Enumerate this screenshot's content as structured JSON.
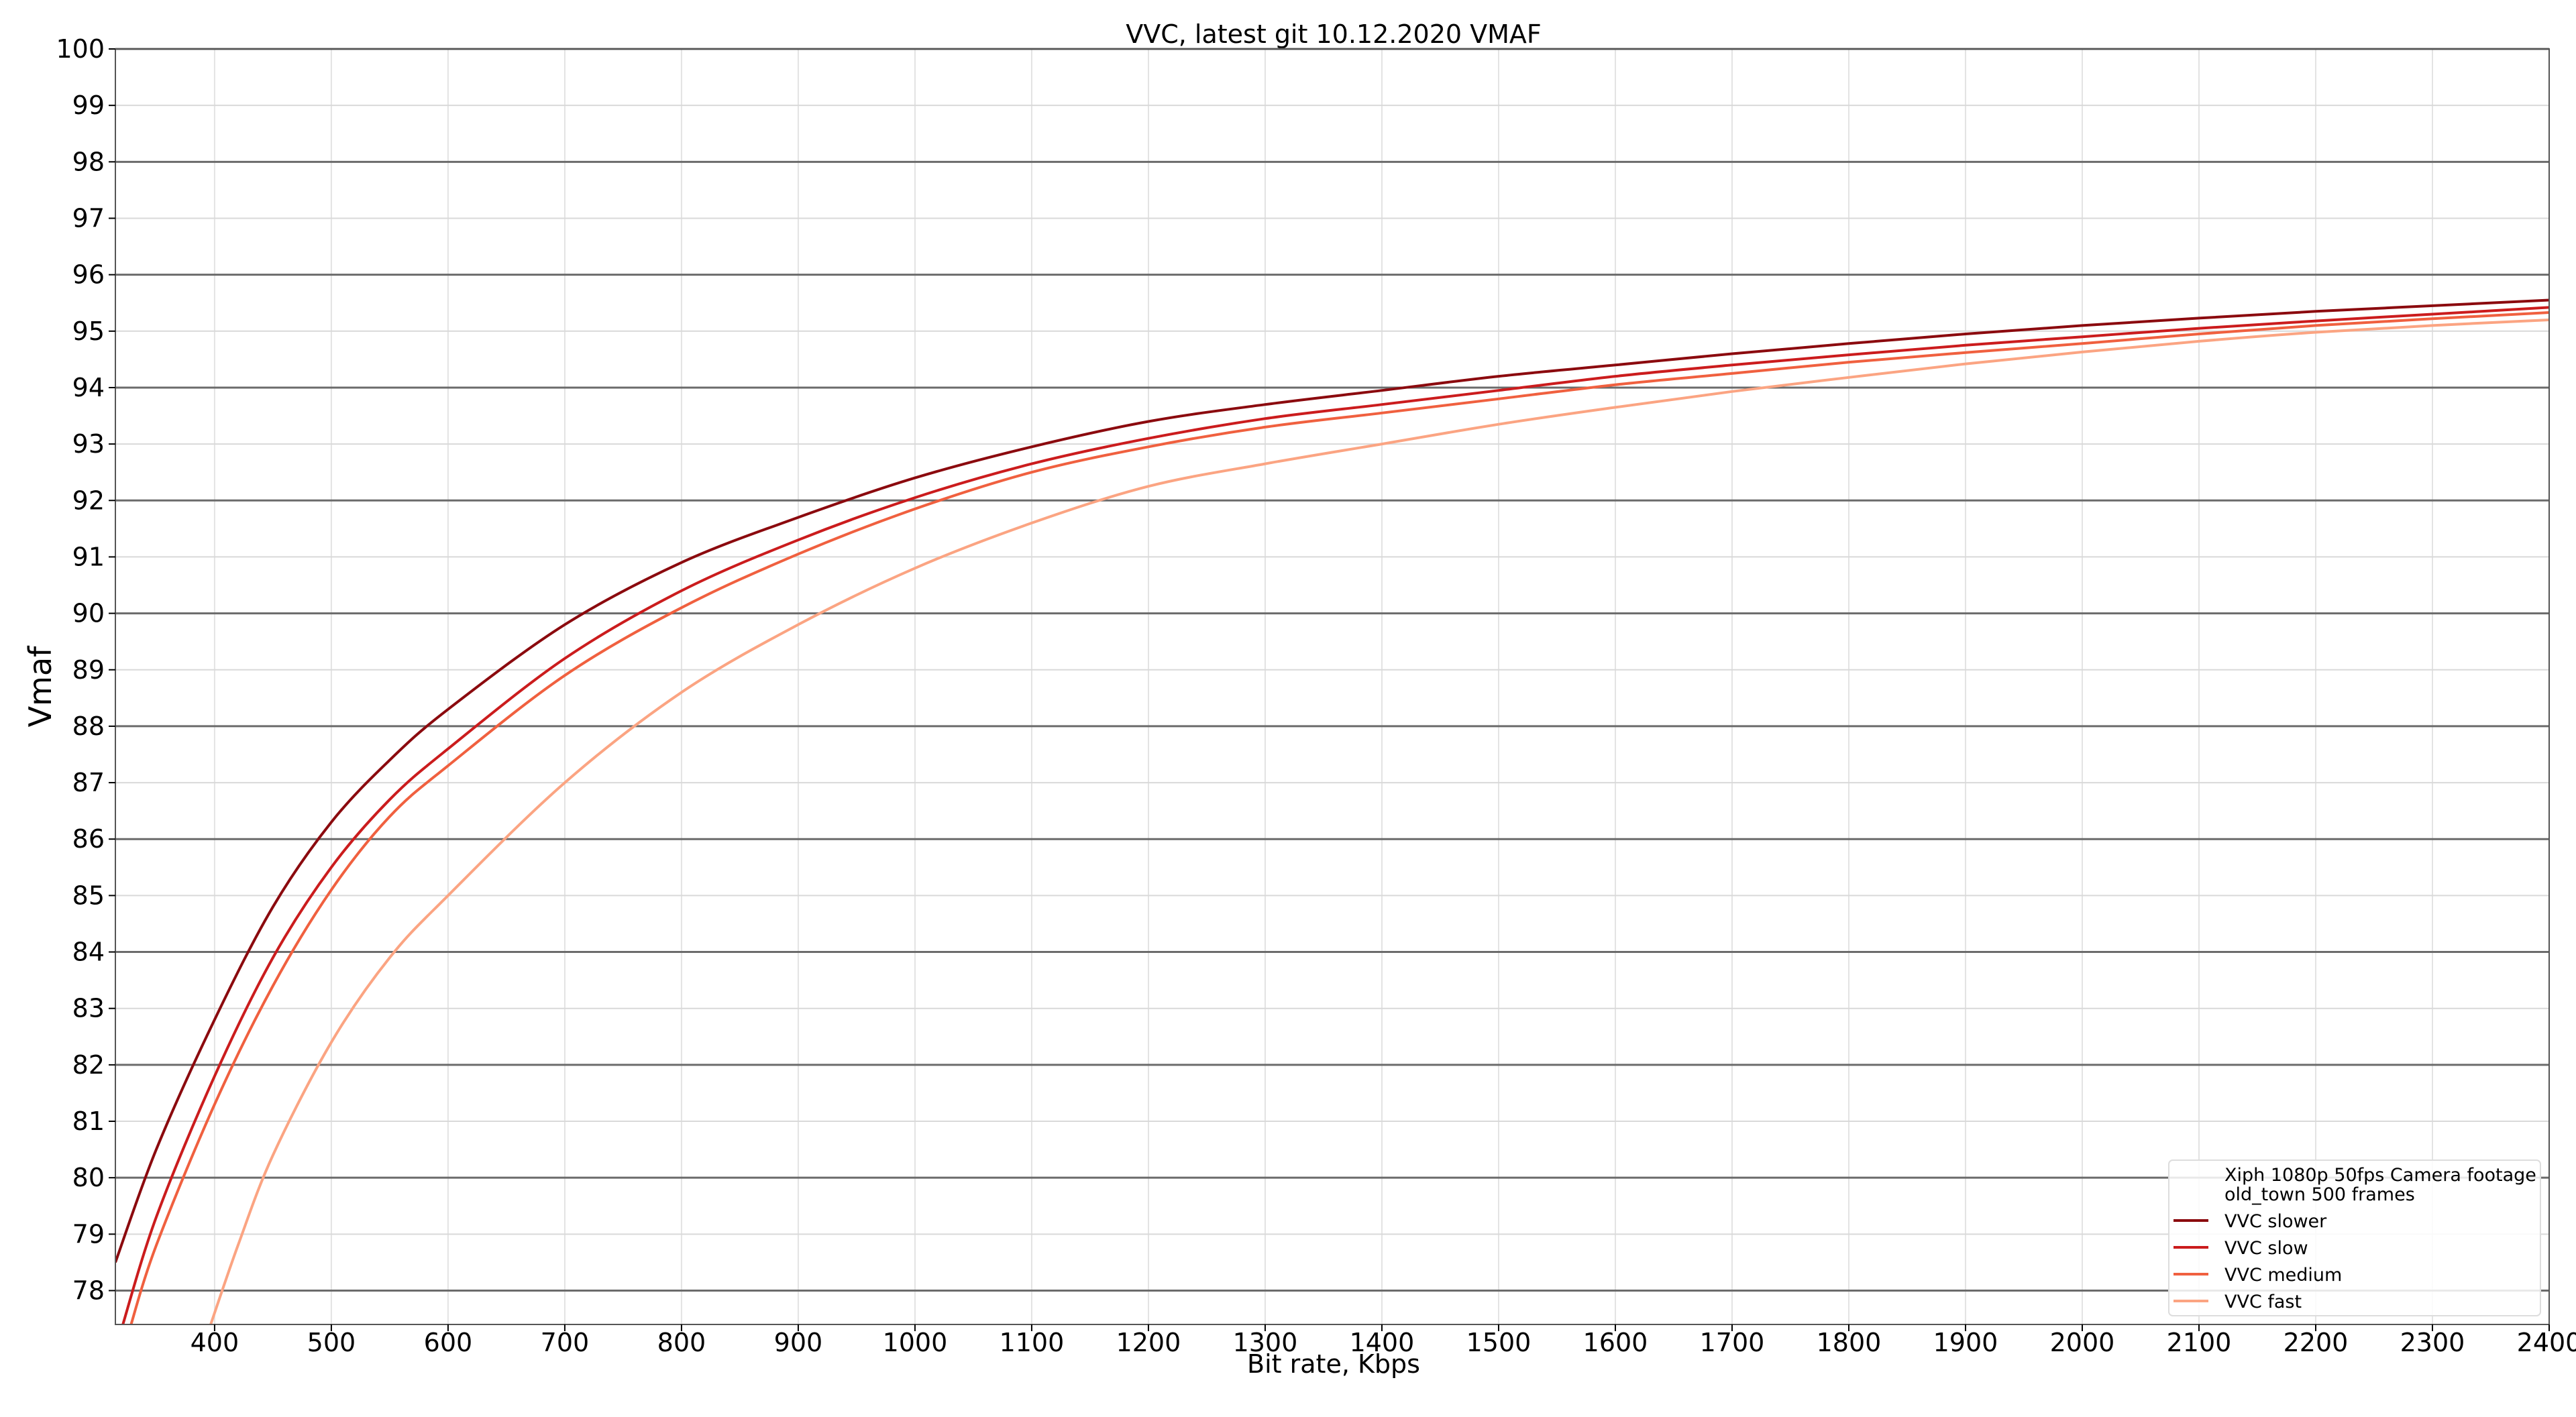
{
  "chart_data": {
    "type": "line",
    "title": "VVC, latest git 10.12.2020 VMAF",
    "xlabel": "Bit rate, Kbps",
    "ylabel": "Vmaf",
    "xlim": [
      315,
      2400
    ],
    "ylim": [
      77.4,
      100
    ],
    "x_ticks": [
      400,
      500,
      600,
      700,
      800,
      900,
      1000,
      1100,
      1200,
      1300,
      1400,
      1500,
      1600,
      1700,
      1800,
      1900,
      2000,
      2100,
      2200,
      2300,
      2400
    ],
    "y_ticks": [
      78,
      79,
      80,
      81,
      82,
      83,
      84,
      85,
      86,
      87,
      88,
      89,
      90,
      91,
      92,
      93,
      94,
      95,
      96,
      97,
      98,
      99,
      100
    ],
    "y_major_even_lines": true,
    "grid": true,
    "legend": {
      "placement": "bottom-right",
      "header_lines": [
        "Xiph 1080p 50fps Camera footage",
        "old_town 500 frames"
      ]
    },
    "series": [
      {
        "name": "VVC slower",
        "color": "#8b0a0e",
        "x": [
          315,
          350,
          400,
          450,
          500,
          550,
          600,
          700,
          800,
          900,
          1000,
          1100,
          1200,
          1300,
          1400,
          1500,
          1600,
          1700,
          1800,
          1900,
          2000,
          2100,
          2200,
          2300,
          2400
        ],
        "y": [
          78.5,
          80.5,
          82.8,
          84.8,
          86.3,
          87.4,
          88.3,
          89.8,
          90.9,
          91.7,
          92.4,
          92.95,
          93.4,
          93.7,
          93.95,
          94.2,
          94.4,
          94.6,
          94.78,
          94.95,
          95.1,
          95.23,
          95.35,
          95.45,
          95.55
        ]
      },
      {
        "name": "VVC slow",
        "color": "#cb1c1d",
        "x": [
          320,
          350,
          400,
          450,
          500,
          550,
          600,
          700,
          800,
          900,
          1000,
          1100,
          1200,
          1300,
          1400,
          1500,
          1600,
          1700,
          1800,
          1900,
          2000,
          2100,
          2200,
          2300,
          2400
        ],
        "y": [
          77.3,
          79.3,
          81.8,
          83.9,
          85.5,
          86.7,
          87.6,
          89.2,
          90.4,
          91.3,
          92.05,
          92.65,
          93.1,
          93.45,
          93.7,
          93.95,
          94.2,
          94.4,
          94.58,
          94.75,
          94.9,
          95.05,
          95.18,
          95.3,
          95.42
        ]
      },
      {
        "name": "VVC medium",
        "color": "#f0603f",
        "x": [
          327,
          350,
          400,
          450,
          500,
          550,
          600,
          700,
          800,
          900,
          1000,
          1100,
          1200,
          1300,
          1400,
          1500,
          1600,
          1700,
          1800,
          1900,
          2000,
          2100,
          2200,
          2300,
          2400
        ],
        "y": [
          77.3,
          78.8,
          81.3,
          83.4,
          85.1,
          86.4,
          87.3,
          88.9,
          90.1,
          91.05,
          91.85,
          92.5,
          92.95,
          93.3,
          93.55,
          93.8,
          94.05,
          94.25,
          94.45,
          94.62,
          94.78,
          94.95,
          95.1,
          95.22,
          95.33
        ]
      },
      {
        "name": "VVC fast",
        "color": "#fba482",
        "x": [
          395,
          420,
          450,
          500,
          550,
          600,
          700,
          800,
          900,
          1000,
          1100,
          1200,
          1300,
          1400,
          1500,
          1600,
          1700,
          1800,
          1900,
          2000,
          2100,
          2200,
          2300,
          2400
        ],
        "y": [
          77.3,
          78.8,
          80.4,
          82.4,
          83.9,
          85.0,
          87.0,
          88.6,
          89.8,
          90.8,
          91.6,
          92.25,
          92.65,
          93.0,
          93.35,
          93.65,
          93.93,
          94.18,
          94.42,
          94.63,
          94.82,
          94.98,
          95.1,
          95.2
        ]
      }
    ]
  }
}
